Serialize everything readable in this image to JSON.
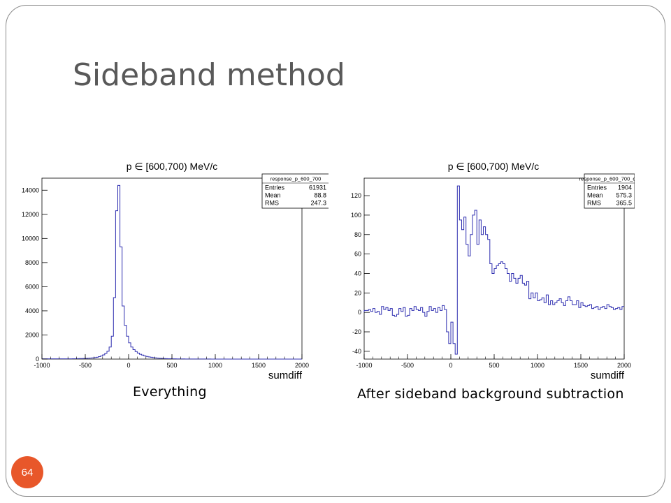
{
  "slide": {
    "title": "Sideband method",
    "page_number": "64",
    "colors": {
      "accent": "#e8572a",
      "histogram": "#2f2fb0",
      "title": "#595959"
    }
  },
  "chart_data": [
    {
      "type": "histogram",
      "title": "p ∈ [600,700) MeV/c",
      "xlabel": "sumdiff",
      "ylabel": "",
      "caption": "Everything",
      "xlim": [
        -1000,
        2000
      ],
      "ylim": [
        0,
        15000
      ],
      "xticks": [
        "-1000",
        "-500",
        "0",
        "500",
        "1000",
        "1500",
        "2000"
      ],
      "yticks": [
        "0",
        "2000",
        "4000",
        "6000",
        "8000",
        "10000",
        "12000",
        "14000"
      ],
      "ytick_values": [
        0,
        2000,
        4000,
        6000,
        8000,
        10000,
        12000,
        14000
      ],
      "stats": {
        "name": "response_p_600_700",
        "rows": [
          {
            "label": "Entries",
            "value": "61931"
          },
          {
            "label": "Mean",
            "value": "88.8"
          },
          {
            "label": "RMS",
            "value": "247.3"
          }
        ]
      },
      "bin_width": 25,
      "x_start": -1000,
      "values": [
        20,
        20,
        20,
        20,
        20,
        20,
        20,
        20,
        20,
        20,
        25,
        25,
        25,
        25,
        30,
        30,
        35,
        40,
        45,
        50,
        60,
        70,
        85,
        100,
        120,
        150,
        200,
        260,
        350,
        480,
        650,
        1000,
        1900,
        5100,
        12300,
        14400,
        9300,
        4400,
        2800,
        1900,
        1350,
        1000,
        780,
        620,
        500,
        400,
        330,
        270,
        220,
        180,
        150,
        120,
        100,
        80,
        65,
        55,
        45,
        38,
        32,
        28,
        24,
        20,
        18,
        16,
        14,
        12,
        10,
        10,
        8,
        8,
        6,
        6,
        5,
        5,
        5,
        4,
        4,
        4,
        3,
        3,
        3,
        3,
        2,
        2,
        2,
        2,
        2,
        2,
        2,
        2,
        2,
        0,
        0,
        0,
        0,
        0,
        0,
        0,
        0,
        0,
        0,
        0,
        0,
        0,
        0,
        0,
        0,
        0,
        0,
        0,
        0,
        0,
        0,
        0,
        0,
        0,
        0,
        0,
        0,
        0
      ]
    },
    {
      "type": "histogram",
      "title": "p ∈ [600,700) MeV/c",
      "xlabel": "sumdiff",
      "ylabel": "",
      "caption": "After sideband background subtraction",
      "xlim": [
        -1000,
        2000
      ],
      "ylim": [
        -48,
        138
      ],
      "xticks": [
        "-1000",
        "-500",
        "0",
        "500",
        "1000",
        "1500",
        "2000"
      ],
      "yticks": [
        "-40",
        "-20",
        "0",
        "20",
        "40",
        "60",
        "80",
        "100",
        "120"
      ],
      "ytick_values": [
        -40,
        -20,
        0,
        20,
        40,
        60,
        80,
        100,
        120
      ],
      "stats": {
        "name": "response_p_600_700_diff",
        "rows": [
          {
            "label": "Entries",
            "value": "1904"
          },
          {
            "label": "Mean",
            "value": "575.3"
          },
          {
            "label": "RMS",
            "value": "365.5"
          }
        ]
      },
      "bin_width": 25,
      "x_start": -1000,
      "values": [
        2,
        2,
        3,
        1,
        4,
        0,
        1,
        -2,
        6,
        3,
        5,
        2,
        4,
        -3,
        -4,
        -2,
        4,
        1,
        5,
        -4,
        -3,
        4,
        2,
        6,
        3,
        2,
        5,
        0,
        -4,
        1,
        6,
        2,
        4,
        0,
        5,
        2,
        7,
        3,
        -20,
        -32,
        -10,
        -32,
        -43,
        130,
        95,
        85,
        98,
        70,
        58,
        80,
        100,
        105,
        70,
        95,
        80,
        88,
        80,
        75,
        50,
        40,
        45,
        48,
        50,
        52,
        50,
        45,
        40,
        32,
        40,
        35,
        30,
        35,
        38,
        30,
        28,
        32,
        14,
        20,
        15,
        20,
        12,
        13,
        15,
        10,
        18,
        8,
        12,
        8,
        10,
        12,
        14,
        10,
        7,
        12,
        16,
        12,
        8,
        8,
        12,
        5,
        10,
        7,
        6,
        7,
        8,
        4,
        5,
        6,
        3,
        5,
        6,
        4,
        8,
        6,
        5,
        3,
        4,
        5,
        3,
        6
      ]
    }
  ]
}
